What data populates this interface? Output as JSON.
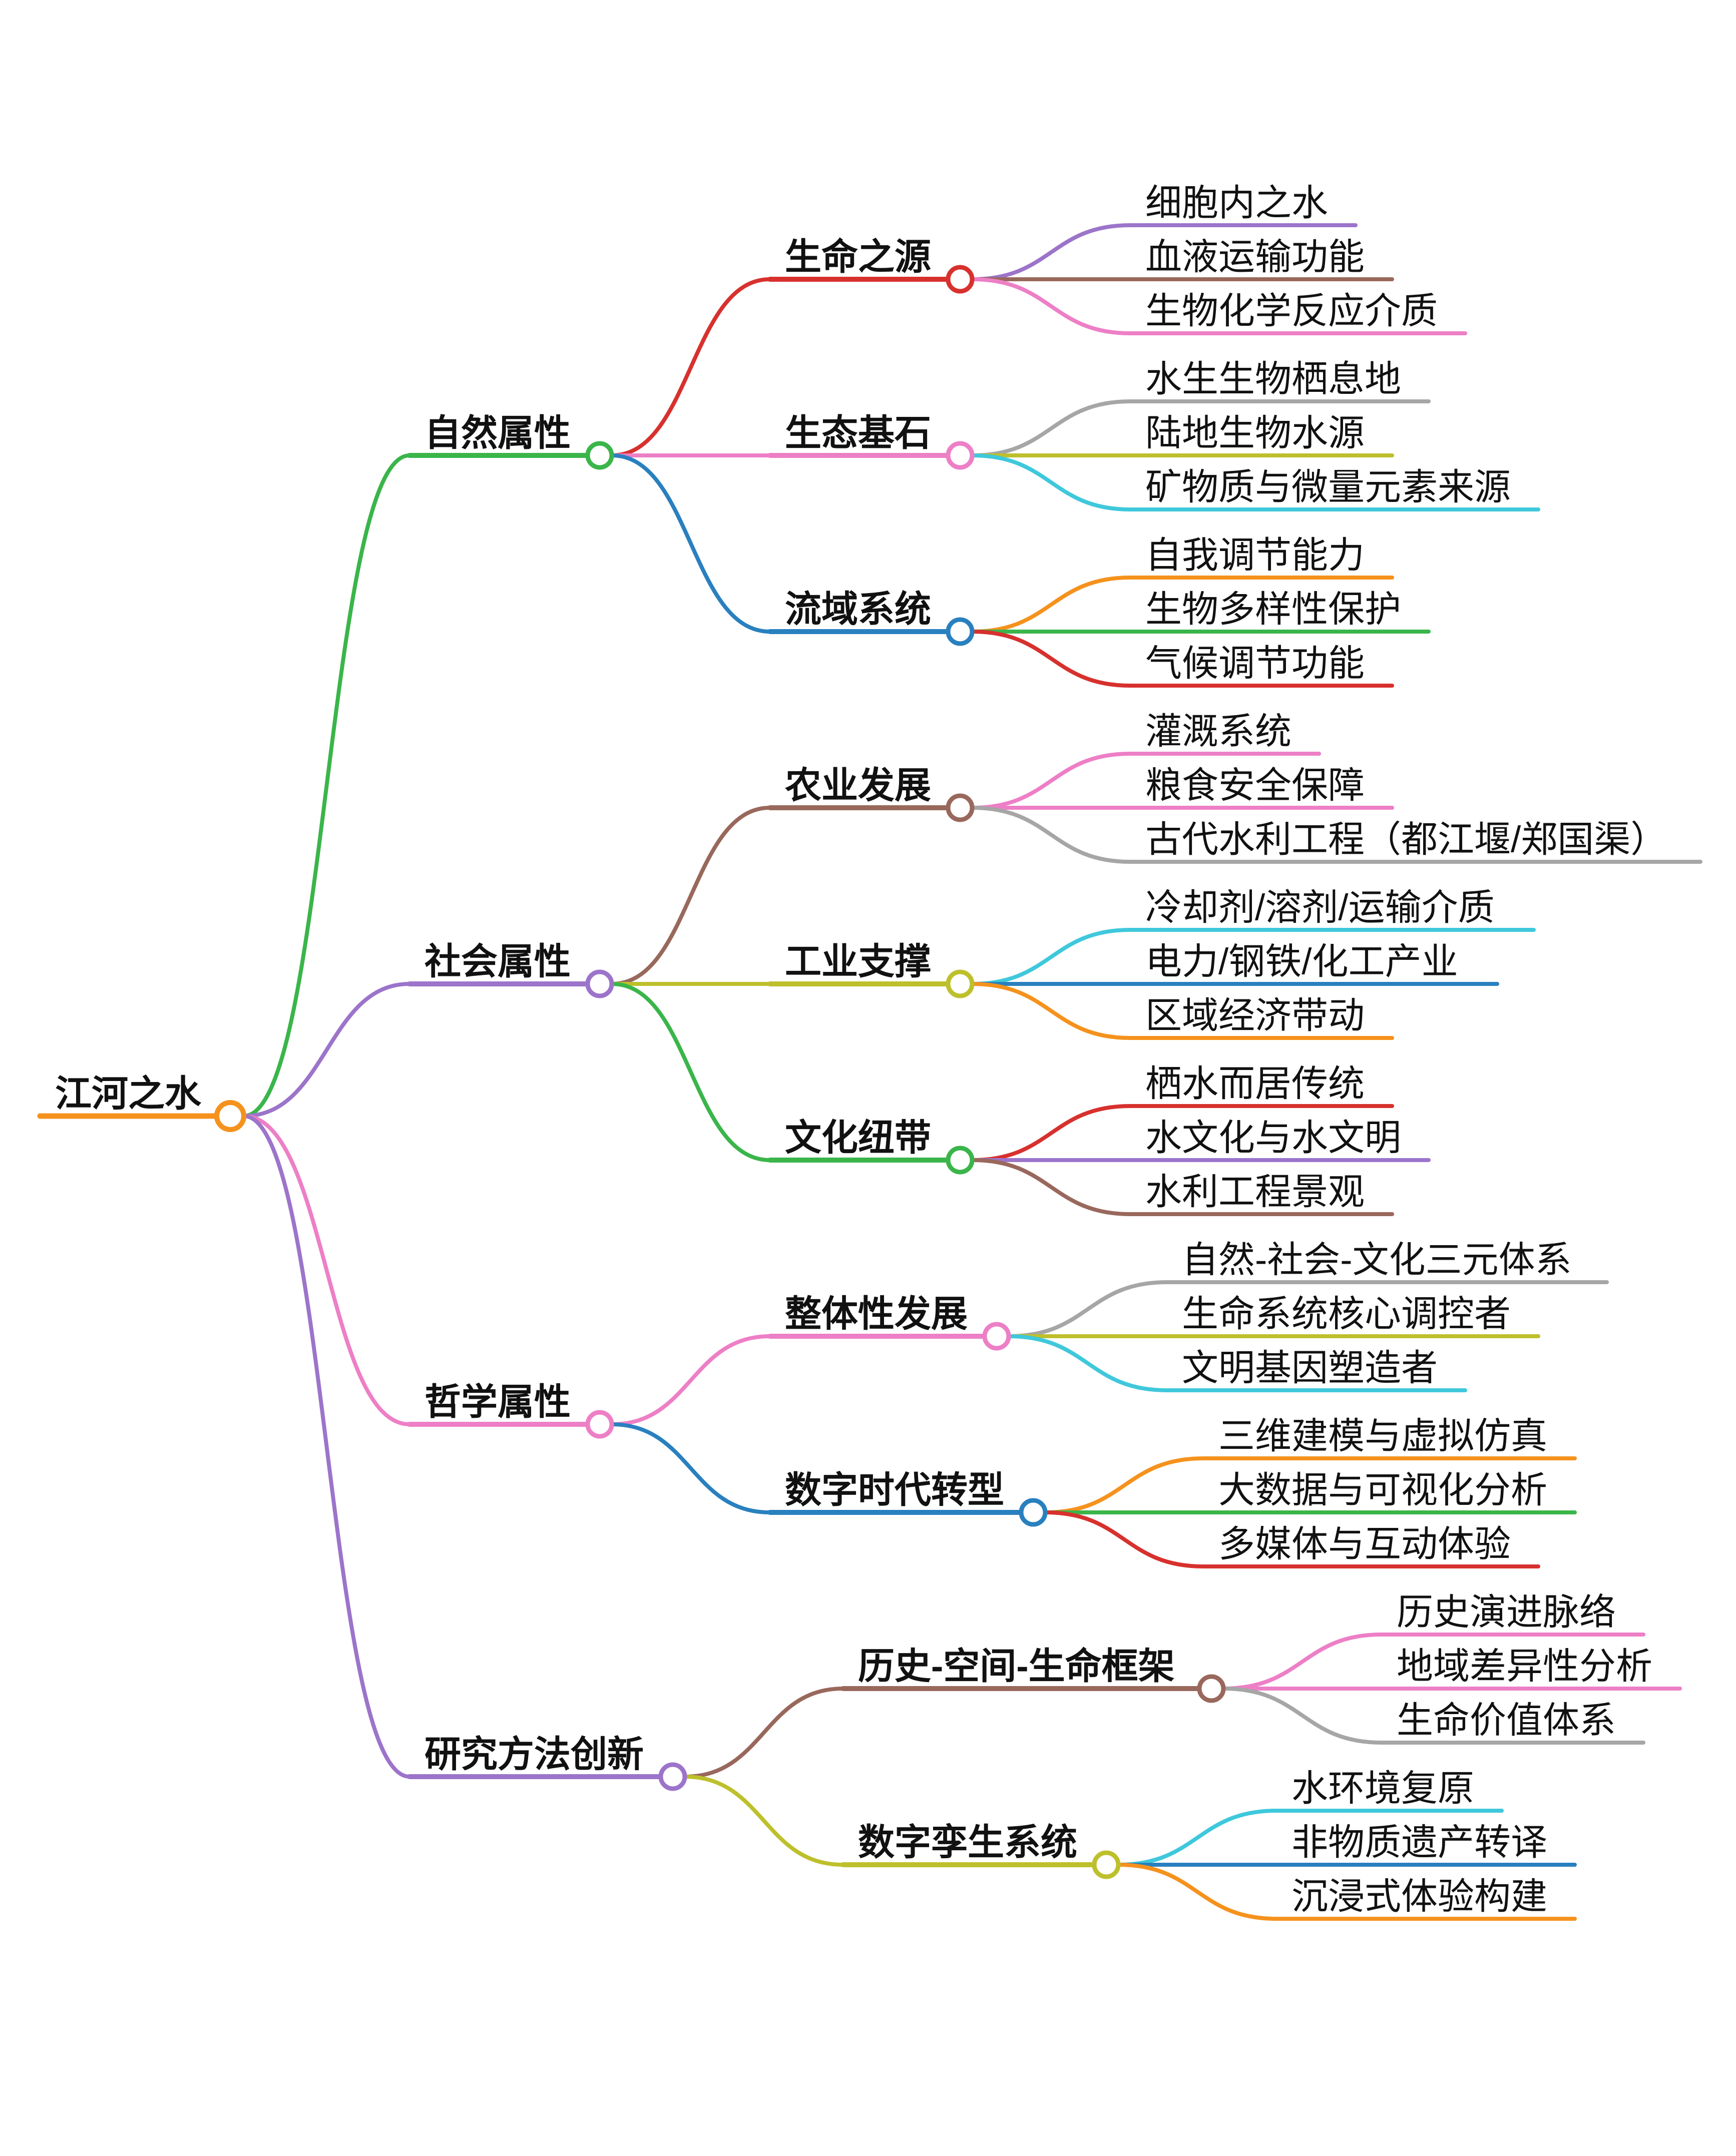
{
  "diagram_type": "mindmap",
  "background": "#ffffff",
  "text_color": "#111111",
  "palette": {
    "orange": "#f5921d",
    "green": "#3ab54a",
    "red": "#d7312e",
    "purple": "#9c74ca",
    "brown": "#99685c",
    "pink": "#ed7fc6",
    "gray": "#a6a6a6",
    "olive": "#bdc02b",
    "cyan": "#3fc8dc",
    "blue": "#2980bf"
  },
  "tree": {
    "label": "江河之水",
    "color": "#f5921d",
    "children": [
      {
        "label": "自然属性",
        "color": "#3ab54a",
        "children": [
          {
            "label": "生命之源",
            "color": "#d7312e",
            "children": [
              {
                "label": "细胞内之水",
                "color": "#9c74ca"
              },
              {
                "label": "血液运输功能",
                "color": "#99685c"
              },
              {
                "label": "生物化学反应介质",
                "color": "#ed7fc6"
              }
            ]
          },
          {
            "label": "生态基石",
            "color": "#ed7fc6",
            "children": [
              {
                "label": "水生生物栖息地",
                "color": "#a6a6a6"
              },
              {
                "label": "陆地生物水源",
                "color": "#bdc02b"
              },
              {
                "label": "矿物质与微量元素来源",
                "color": "#3fc8dc"
              }
            ]
          },
          {
            "label": "流域系统",
            "color": "#2980bf",
            "children": [
              {
                "label": "自我调节能力",
                "color": "#f5921d"
              },
              {
                "label": "生物多样性保护",
                "color": "#3ab54a"
              },
              {
                "label": "气候调节功能",
                "color": "#d7312e"
              }
            ]
          }
        ]
      },
      {
        "label": "社会属性",
        "color": "#9c74ca",
        "children": [
          {
            "label": "农业发展",
            "color": "#99685c",
            "children": [
              {
                "label": "灌溉系统",
                "color": "#ed7fc6"
              },
              {
                "label": "粮食安全保障",
                "color": "#ed7fc6"
              },
              {
                "label": "古代水利工程（都江堰/郑国渠）",
                "color": "#a6a6a6"
              }
            ]
          },
          {
            "label": "工业支撑",
            "color": "#bdc02b",
            "children": [
              {
                "label": "冷却剂/溶剂/运输介质",
                "color": "#3fc8dc"
              },
              {
                "label": "电力/钢铁/化工产业",
                "color": "#2980bf"
              },
              {
                "label": "区域经济带动",
                "color": "#f5921d"
              }
            ]
          },
          {
            "label": "文化纽带",
            "color": "#3ab54a",
            "children": [
              {
                "label": "栖水而居传统",
                "color": "#d7312e"
              },
              {
                "label": "水文化与水文明",
                "color": "#9c74ca"
              },
              {
                "label": "水利工程景观",
                "color": "#99685c"
              }
            ]
          }
        ]
      },
      {
        "label": "哲学属性",
        "color": "#ed7fc6",
        "children": [
          {
            "label": "整体性发展",
            "color": "#ed7fc6",
            "children": [
              {
                "label": "自然-社会-文化三元体系",
                "color": "#a6a6a6"
              },
              {
                "label": "生命系统核心调控者",
                "color": "#bdc02b"
              },
              {
                "label": "文明基因塑造者",
                "color": "#3fc8dc"
              }
            ]
          },
          {
            "label": "数字时代转型",
            "color": "#2980bf",
            "children": [
              {
                "label": "三维建模与虚拟仿真",
                "color": "#f5921d"
              },
              {
                "label": "大数据与可视化分析",
                "color": "#3ab54a"
              },
              {
                "label": "多媒体与互动体验",
                "color": "#d7312e"
              }
            ]
          }
        ]
      },
      {
        "label": "研究方法创新",
        "color": "#9c74ca",
        "children": [
          {
            "label": "历史-空间-生命框架",
            "color": "#99685c",
            "children": [
              {
                "label": "历史演进脉络",
                "color": "#ed7fc6"
              },
              {
                "label": "地域差异性分析",
                "color": "#ed7fc6"
              },
              {
                "label": "生命价值体系",
                "color": "#a6a6a6"
              }
            ]
          },
          {
            "label": "数字孪生系统",
            "color": "#bdc02b",
            "children": [
              {
                "label": "水环境复原",
                "color": "#3fc8dc"
              },
              {
                "label": "非物质遗产转译",
                "color": "#2980bf"
              },
              {
                "label": "沉浸式体验构建",
                "color": "#f5921d"
              }
            ]
          }
        ]
      }
    ]
  }
}
